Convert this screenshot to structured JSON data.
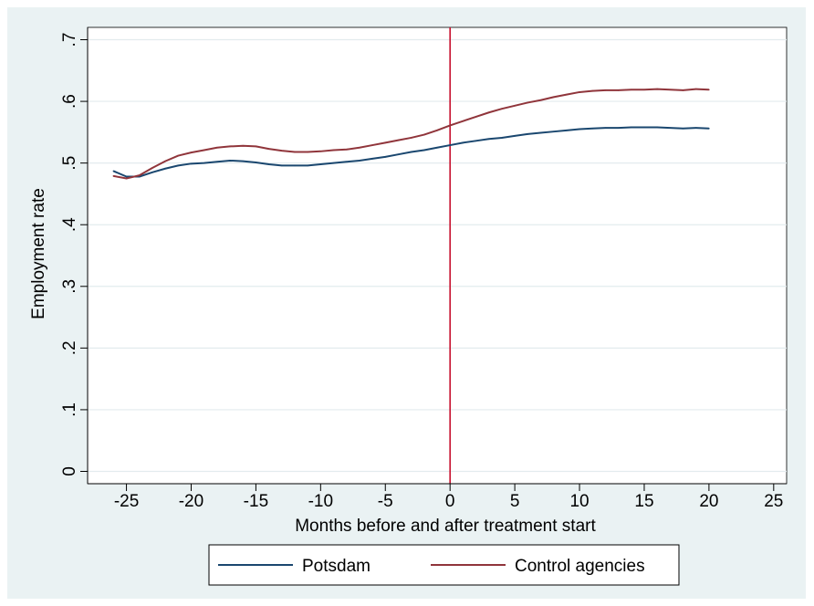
{
  "chart_data": {
    "type": "line",
    "title": "",
    "xlabel": "Months before and after treatment start",
    "ylabel": "Employment rate",
    "xlim": [
      -28,
      26
    ],
    "ylim": [
      -0.02,
      0.72
    ],
    "x_ticks": [
      -25,
      -20,
      -15,
      -10,
      -5,
      0,
      5,
      10,
      15,
      20,
      25
    ],
    "x_tick_labels": [
      "-25",
      "-20",
      "-15",
      "-10",
      "-5",
      "0",
      "5",
      "10",
      "15",
      "20",
      "25"
    ],
    "y_ticks": [
      0,
      0.1,
      0.2,
      0.3,
      0.4,
      0.5,
      0.6,
      0.7
    ],
    "y_tick_labels": [
      "0",
      ".1",
      ".2",
      ".3",
      ".4",
      ".5",
      ".6",
      ".7"
    ],
    "grid": "horizontal",
    "legend_position": "bottom",
    "vline": {
      "x": 0,
      "color": "#c8102e"
    },
    "series": [
      {
        "name": "Potsdam",
        "color": "#1a476f",
        "x": [
          -26,
          -25,
          -24,
          -23,
          -22,
          -21,
          -20,
          -19,
          -18,
          -17,
          -16,
          -15,
          -14,
          -13,
          -12,
          -11,
          -10,
          -9,
          -8,
          -7,
          -6,
          -5,
          -4,
          -3,
          -2,
          -1,
          0,
          1,
          2,
          3,
          4,
          5,
          6,
          7,
          8,
          9,
          10,
          11,
          12,
          13,
          14,
          15,
          16,
          17,
          18,
          19,
          20
        ],
        "y": [
          0.487,
          0.478,
          0.478,
          0.485,
          0.491,
          0.496,
          0.499,
          0.5,
          0.502,
          0.504,
          0.503,
          0.501,
          0.498,
          0.496,
          0.496,
          0.496,
          0.498,
          0.5,
          0.502,
          0.504,
          0.507,
          0.51,
          0.514,
          0.518,
          0.521,
          0.525,
          0.529,
          0.533,
          0.536,
          0.539,
          0.541,
          0.544,
          0.547,
          0.549,
          0.551,
          0.553,
          0.555,
          0.556,
          0.557,
          0.557,
          0.558,
          0.558,
          0.558,
          0.557,
          0.556,
          0.557,
          0.556
        ]
      },
      {
        "name": "Control agencies",
        "color": "#90353b",
        "x": [
          -26,
          -25,
          -24,
          -23,
          -22,
          -21,
          -20,
          -19,
          -18,
          -17,
          -16,
          -15,
          -14,
          -13,
          -12,
          -11,
          -10,
          -9,
          -8,
          -7,
          -6,
          -5,
          -4,
          -3,
          -2,
          -1,
          0,
          1,
          2,
          3,
          4,
          5,
          6,
          7,
          8,
          9,
          10,
          11,
          12,
          13,
          14,
          15,
          16,
          17,
          18,
          19,
          20
        ],
        "y": [
          0.479,
          0.475,
          0.48,
          0.492,
          0.503,
          0.512,
          0.517,
          0.521,
          0.525,
          0.527,
          0.528,
          0.527,
          0.523,
          0.52,
          0.518,
          0.518,
          0.519,
          0.521,
          0.522,
          0.525,
          0.529,
          0.533,
          0.537,
          0.541,
          0.546,
          0.553,
          0.561,
          0.568,
          0.575,
          0.582,
          0.588,
          0.593,
          0.598,
          0.602,
          0.607,
          0.611,
          0.615,
          0.617,
          0.618,
          0.618,
          0.619,
          0.619,
          0.62,
          0.619,
          0.618,
          0.62,
          0.619
        ]
      }
    ]
  }
}
